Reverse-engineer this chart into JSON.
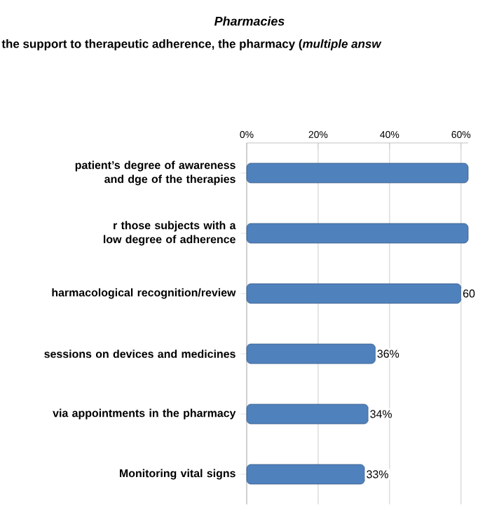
{
  "chart_data": {
    "type": "bar",
    "orientation": "horizontal",
    "title": "*Pharmacies*",
    "subtitle": "the support to therapeutic adherence, the pharmacy (*multiple answ*",
    "categories": [
      "patient’s degree of awareness and dge of the therapies",
      "r those subjects with a low degree of adherence",
      "harmacological recognition/review",
      "sessions on devices and medicines",
      "via appointments in the pharmacy",
      "Monitoring vital signs"
    ],
    "values": [
      62,
      62,
      60,
      36,
      34,
      33
    ],
    "value_labels": [
      null,
      null,
      "60",
      "36%",
      "34%",
      "33%"
    ],
    "color": "#4f81bd",
    "xlim": [
      0,
      62
    ],
    "xticks": [
      {
        "value": 0,
        "label": "0%"
      },
      {
        "value": 20,
        "label": "20%"
      },
      {
        "value": 40,
        "label": "40%"
      },
      {
        "value": 60,
        "label": "60%"
      }
    ],
    "grid": "x"
  }
}
